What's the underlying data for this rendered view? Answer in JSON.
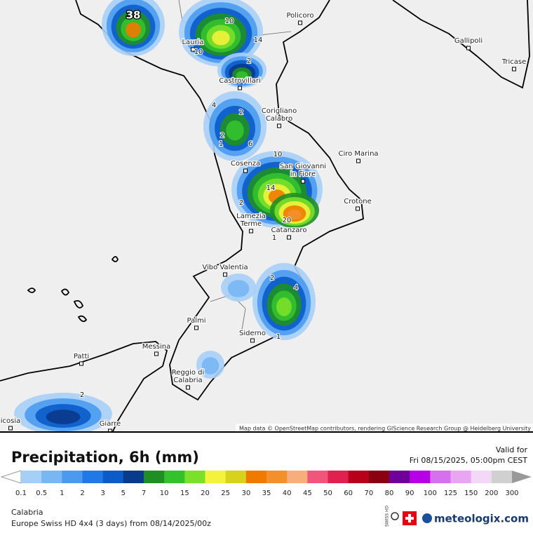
{
  "map": {
    "cities": [
      {
        "label": [
          "Policoro"
        ]
      },
      {
        "label": [
          "Gallipoli"
        ]
      },
      {
        "label": [
          "Tricase"
        ]
      },
      {
        "label": [
          "Lauria"
        ]
      },
      {
        "label": [
          "Castrovillari"
        ]
      },
      {
        "label": [
          "Corigliano",
          "Calabro"
        ]
      },
      {
        "label": [
          "Ciro Marina"
        ]
      },
      {
        "label": [
          "Cosenza"
        ]
      },
      {
        "label": [
          "San Giovanni",
          "in Fiore"
        ]
      },
      {
        "label": [
          "Crotone"
        ]
      },
      {
        "label": [
          "Lamezia",
          "Terme"
        ]
      },
      {
        "label": [
          "Catanzaro"
        ]
      },
      {
        "label": [
          "Vibo Valentia"
        ]
      },
      {
        "label": [
          "Palmi"
        ]
      },
      {
        "label": [
          "Siderno"
        ]
      },
      {
        "label": [
          "Messina"
        ]
      },
      {
        "label": [
          "Patti"
        ]
      },
      {
        "label": [
          "Reggio di",
          "Calabria"
        ]
      },
      {
        "label": [
          "Giarre"
        ]
      },
      {
        "label": [
          "icosia"
        ]
      }
    ],
    "max_label": "38",
    "contour_labels": [
      "10",
      "14",
      "10",
      "2",
      "4",
      "2",
      "2",
      "1",
      "6",
      "10",
      "14",
      "2",
      "20",
      "1",
      "2",
      "4",
      "1",
      "2"
    ],
    "attribution": "Map data © OpenStreetMap contributors, rendering GIScience Research Group @ Heidelberg University"
  },
  "legend": {
    "title": "Precipitation, 6h (mm)",
    "valid_label": "Valid for",
    "valid_time": "Fri 08/15/2025, 05:00pm CEST",
    "ticks": [
      "0.1",
      "0.5",
      "1",
      "2",
      "3",
      "5",
      "7",
      "10",
      "15",
      "20",
      "25",
      "30",
      "35",
      "40",
      "45",
      "50",
      "60",
      "70",
      "80",
      "90",
      "100",
      "125",
      "150",
      "200",
      "300"
    ],
    "colors": [
      "#a6cff7",
      "#78b6f4",
      "#4a9af0",
      "#2079e6",
      "#0b5bc9",
      "#0a3a8c",
      "#1f8f24",
      "#34c22c",
      "#7be02a",
      "#f4f23a",
      "#d9d21c",
      "#f07a00",
      "#f3902c",
      "#f7ae7a",
      "#f2557c",
      "#e0204e",
      "#b8001a",
      "#8a0010",
      "#70009a",
      "#b800e6",
      "#d670ee",
      "#e8a6f2",
      "#f3d9f7",
      "#d0d0d0"
    ]
  },
  "footer": {
    "region": "Calabria",
    "model": "Europe Swiss HD 4x4 (3 days) from  08/14/2025/00z",
    "logo": "meteologix.com",
    "badge": "SWISS HD"
  }
}
